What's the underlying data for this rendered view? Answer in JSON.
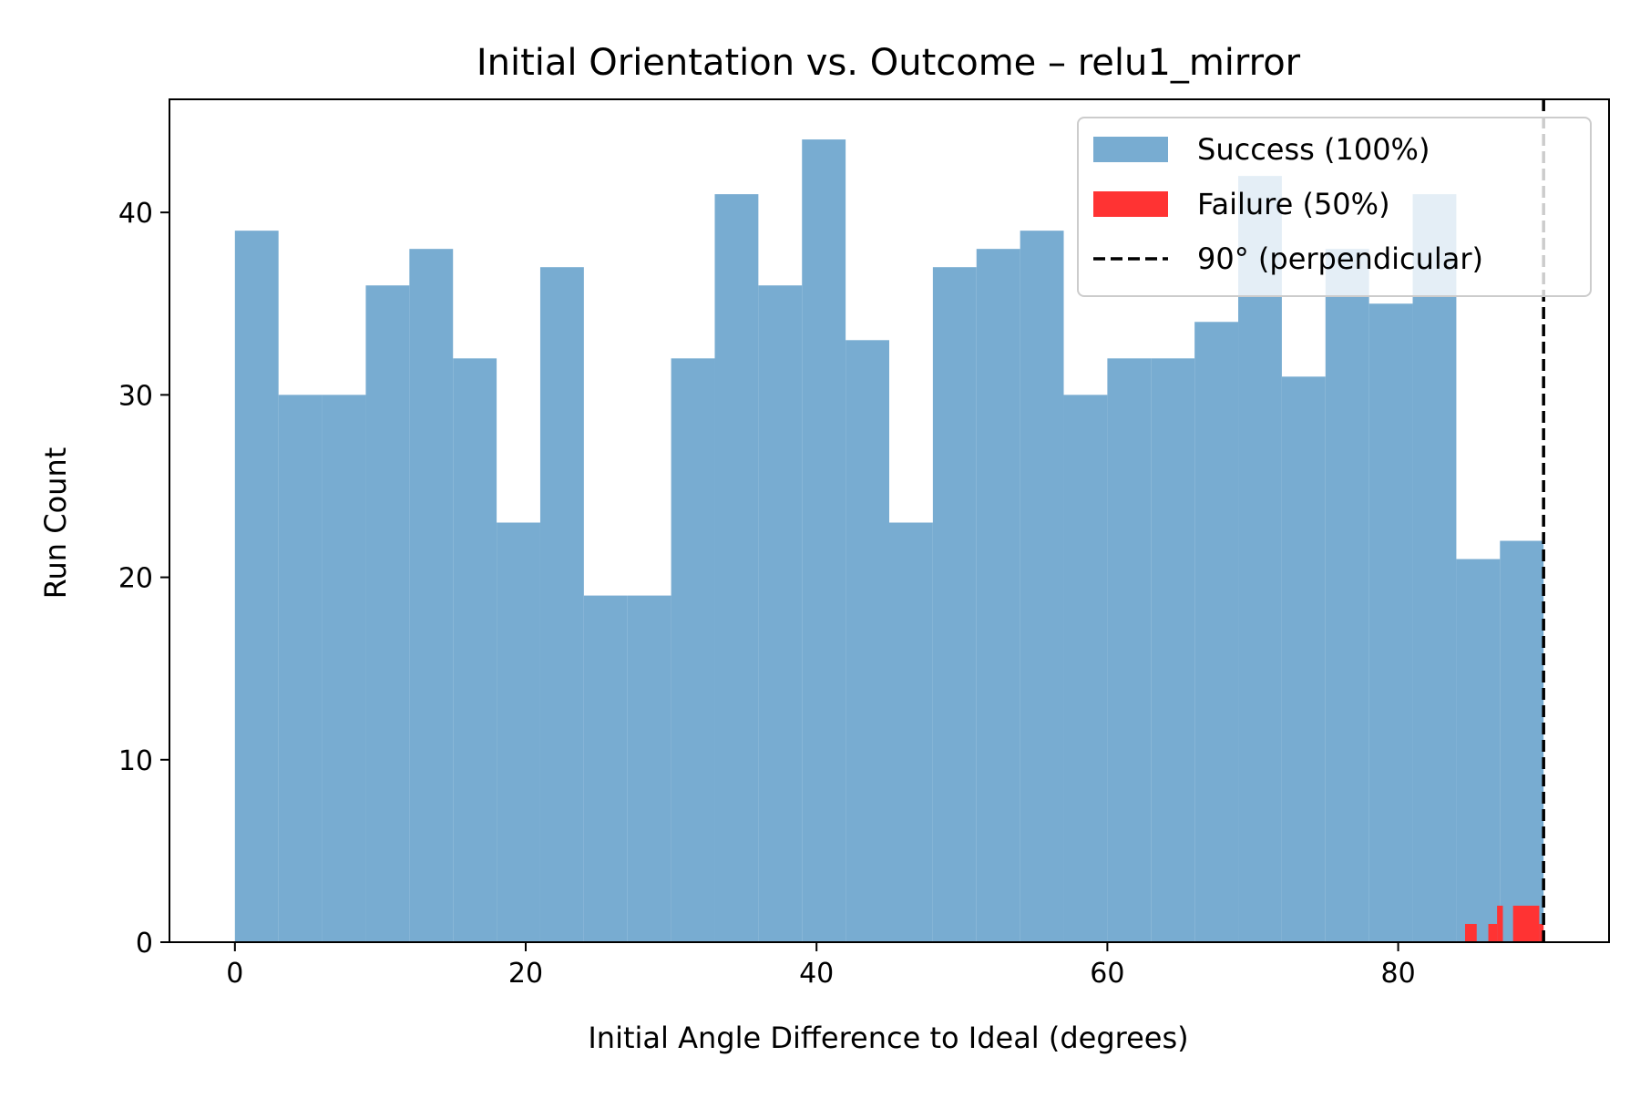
{
  "chart_data": {
    "type": "bar",
    "title": "Initial Orientation vs. Outcome – relu1_mirror",
    "xlabel": "Initial Angle Difference to Ideal (degrees)",
    "ylabel": "Run Count",
    "xlim": [
      -4.5,
      94.5
    ],
    "ylim": [
      0,
      46.2
    ],
    "x_ticks": [
      0,
      20,
      40,
      60,
      80
    ],
    "y_ticks": [
      0,
      10,
      20,
      30,
      40
    ],
    "grid": false,
    "legend_position": "top-right",
    "series": [
      {
        "name": "Success (100%)",
        "color": "#78acd1",
        "bins": [
          {
            "x0": 0.0,
            "x1": 3.0,
            "count": 39
          },
          {
            "x0": 3.0,
            "x1": 6.0,
            "count": 30
          },
          {
            "x0": 6.0,
            "x1": 9.0,
            "count": 30
          },
          {
            "x0": 9.0,
            "x1": 12.0,
            "count": 36
          },
          {
            "x0": 12.0,
            "x1": 15.0,
            "count": 38
          },
          {
            "x0": 15.0,
            "x1": 18.0,
            "count": 32
          },
          {
            "x0": 18.0,
            "x1": 21.0,
            "count": 23
          },
          {
            "x0": 21.0,
            "x1": 24.0,
            "count": 37
          },
          {
            "x0": 24.0,
            "x1": 27.0,
            "count": 19
          },
          {
            "x0": 27.0,
            "x1": 30.0,
            "count": 19
          },
          {
            "x0": 30.0,
            "x1": 33.0,
            "count": 32
          },
          {
            "x0": 33.0,
            "x1": 36.0,
            "count": 41
          },
          {
            "x0": 36.0,
            "x1": 39.0,
            "count": 36
          },
          {
            "x0": 39.0,
            "x1": 42.0,
            "count": 44
          },
          {
            "x0": 42.0,
            "x1": 45.0,
            "count": 33
          },
          {
            "x0": 45.0,
            "x1": 48.0,
            "count": 23
          },
          {
            "x0": 48.0,
            "x1": 51.0,
            "count": 37
          },
          {
            "x0": 51.0,
            "x1": 54.0,
            "count": 38
          },
          {
            "x0": 54.0,
            "x1": 57.0,
            "count": 39
          },
          {
            "x0": 57.0,
            "x1": 60.0,
            "count": 30
          },
          {
            "x0": 60.0,
            "x1": 63.0,
            "count": 32
          },
          {
            "x0": 63.0,
            "x1": 66.0,
            "count": 32
          },
          {
            "x0": 66.0,
            "x1": 69.0,
            "count": 34
          },
          {
            "x0": 69.0,
            "x1": 72.0,
            "count": 42
          },
          {
            "x0": 72.0,
            "x1": 75.0,
            "count": 31
          },
          {
            "x0": 75.0,
            "x1": 78.0,
            "count": 38
          },
          {
            "x0": 78.0,
            "x1": 81.0,
            "count": 35
          },
          {
            "x0": 81.0,
            "x1": 84.0,
            "count": 41
          },
          {
            "x0": 84.0,
            "x1": 87.0,
            "count": 21
          },
          {
            "x0": 87.0,
            "x1": 90.0,
            "count": 22
          }
        ]
      },
      {
        "name": "Failure (50%)",
        "color": "#ff3333",
        "bins": [
          {
            "x0": 84.6,
            "x1": 85.4,
            "count": 1
          },
          {
            "x0": 86.2,
            "x1": 86.8,
            "count": 1
          },
          {
            "x0": 86.8,
            "x1": 87.2,
            "count": 2
          },
          {
            "x0": 87.9,
            "x1": 89.7,
            "count": 2
          },
          {
            "x0": 89.7,
            "x1": 90.0,
            "count": 1
          }
        ]
      }
    ],
    "reference_line": {
      "name": "90° (perpendicular)",
      "x": 90,
      "color": "#000000",
      "style": "dashed"
    }
  }
}
